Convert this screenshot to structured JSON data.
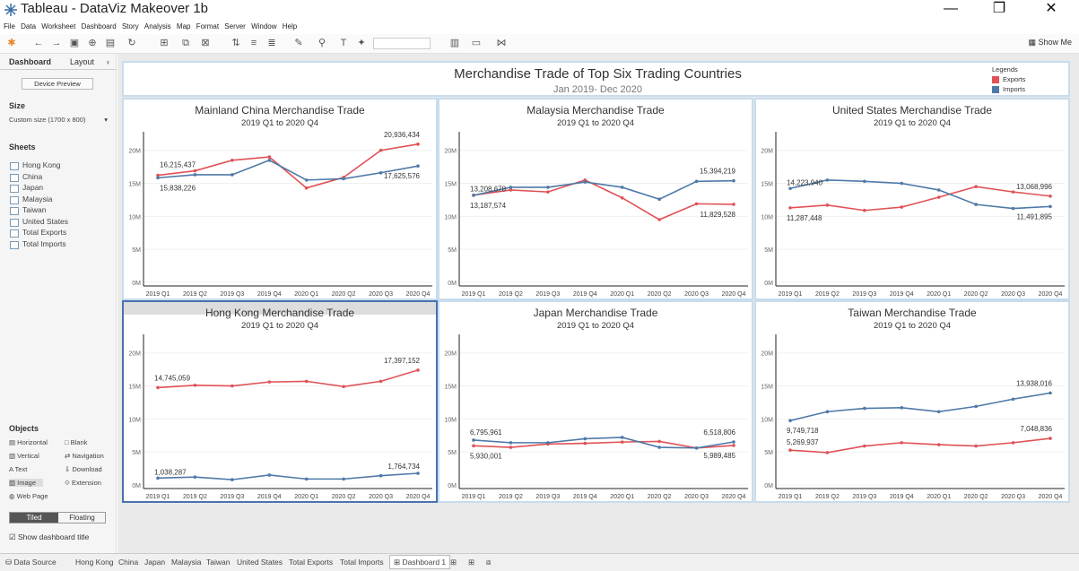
{
  "window": {
    "title": "Tableau - DataViz Makeover 1b"
  },
  "menu": [
    "File",
    "Data",
    "Worksheet",
    "Dashboard",
    "Story",
    "Analysis",
    "Map",
    "Format",
    "Server",
    "Window",
    "Help"
  ],
  "toolbar": {
    "show_me": "Show Me"
  },
  "left_pane": {
    "tab_dashboard": "Dashboard",
    "tab_layout": "Layout",
    "device_preview": "Device Preview",
    "size_label": "Size",
    "size_value": "Custom size (1700 x 800)",
    "sheets_label": "Sheets",
    "sheets": [
      "Hong Kong",
      "China",
      "Japan",
      "Malaysia",
      "Taiwan",
      "United States",
      "Total Exports",
      "Total Imports"
    ],
    "objects_label": "Objects",
    "objects": [
      "Horizontal",
      "Blank",
      "Vertical",
      "Navigation",
      "Text",
      "Download",
      "Image",
      "Extension",
      "Web Page"
    ],
    "tiled": "Tiled",
    "floating": "Floating",
    "show_title": "Show dashboard title"
  },
  "dashboard": {
    "title": "Merchandise Trade of Top Six Trading Countries",
    "subtitle": "Jan 2019- Dec 2020",
    "legend_title": "Legends",
    "legend_exports": "Exports",
    "legend_imports": "Imports",
    "color_exports": "#e05256",
    "color_imports": "#4e79a7"
  },
  "chart_data": [
    {
      "type": "line",
      "title": "Mainland China Merchandise Trade",
      "subtitle": "2019 Q1 to 2020 Q4",
      "categories": [
        "2019 Q1",
        "2019 Q2",
        "2019 Q3",
        "2019 Q4",
        "2020 Q1",
        "2020 Q2",
        "2020 Q3",
        "2020 Q4"
      ],
      "ylim": [
        0,
        22000000
      ],
      "ytick_labels": [
        "0M",
        "5M",
        "10M",
        "15M",
        "20M"
      ],
      "series": [
        {
          "name": "Exports",
          "values": [
            16215437,
            16900000,
            18500000,
            19000000,
            14300000,
            15900000,
            20000000,
            20936434
          ]
        },
        {
          "name": "Imports",
          "values": [
            15838226,
            16300000,
            16300000,
            18500000,
            15500000,
            15700000,
            16600000,
            17625576
          ]
        }
      ],
      "data_labels": [
        "16,215,437",
        "15,838,226",
        "20,936,434",
        "17,625,576"
      ]
    },
    {
      "type": "line",
      "title": "Malaysia Merchandise Trade",
      "subtitle": "2019 Q1 to 2020 Q4",
      "categories": [
        "2019 Q1",
        "2019 Q2",
        "2019 Q3",
        "2019 Q4",
        "2020 Q1",
        "2020 Q2",
        "2020 Q3",
        "2020 Q4"
      ],
      "ylim": [
        0,
        22000000
      ],
      "ytick_labels": [
        "0M",
        "5M",
        "10M",
        "15M",
        "20M"
      ],
      "series": [
        {
          "name": "Exports",
          "values": [
            13208678,
            14000000,
            13700000,
            15500000,
            12800000,
            9500000,
            11900000,
            11829528
          ]
        },
        {
          "name": "Imports",
          "values": [
            13187574,
            14400000,
            14400000,
            15200000,
            14400000,
            12600000,
            15300000,
            15394219
          ]
        }
      ],
      "data_labels": [
        "13,208,678",
        "13,187,574",
        "15,394,219",
        "11,829,528"
      ]
    },
    {
      "type": "line",
      "title": "United States Merchandise Trade",
      "subtitle": "2019 Q1 to 2020 Q4",
      "categories": [
        "2019 Q1",
        "2019 Q2",
        "2019 Q3",
        "2019 Q4",
        "2020 Q1",
        "2020 Q2",
        "2020 Q3",
        "2020 Q4"
      ],
      "ylim": [
        0,
        22000000
      ],
      "ytick_labels": [
        "0M",
        "5M",
        "10M",
        "15M",
        "20M"
      ],
      "series": [
        {
          "name": "Exports",
          "values": [
            11287448,
            11700000,
            10900000,
            11400000,
            12900000,
            14500000,
            13700000,
            13068996
          ]
        },
        {
          "name": "Imports",
          "values": [
            14223940,
            15500000,
            15300000,
            15000000,
            14000000,
            11800000,
            11200000,
            11491895
          ]
        }
      ],
      "data_labels": [
        "14,223,940",
        "11,287,448",
        "13,068,996",
        "11,491,895"
      ]
    },
    {
      "type": "line",
      "title": "Hong Kong Merchandise Trade",
      "subtitle": "2019 Q1 to 2020 Q4",
      "categories": [
        "2019 Q1",
        "2019 Q2",
        "2019 Q3",
        "2019 Q4",
        "2020 Q1",
        "2020 Q2",
        "2020 Q3",
        "2020 Q4"
      ],
      "ylim": [
        0,
        22000000
      ],
      "ytick_labels": [
        "0M",
        "5M",
        "10M",
        "15M",
        "20M"
      ],
      "series": [
        {
          "name": "Exports",
          "values": [
            14745059,
            15100000,
            15000000,
            15600000,
            15700000,
            14900000,
            15700000,
            17397152
          ]
        },
        {
          "name": "Imports",
          "values": [
            1038287,
            1200000,
            800000,
            1500000,
            900000,
            900000,
            1400000,
            1764734
          ]
        }
      ],
      "data_labels": [
        "14,745,059",
        "1,038,287",
        "17,397,152",
        "1,764,734"
      ]
    },
    {
      "type": "line",
      "title": "Japan Merchandise Trade",
      "subtitle": "2019 Q1 to 2020 Q4",
      "categories": [
        "2019 Q1",
        "2019 Q2",
        "2019 Q3",
        "2019 Q4",
        "2020 Q1",
        "2020 Q2",
        "2020 Q3",
        "2020 Q4"
      ],
      "ylim": [
        0,
        22000000
      ],
      "ytick_labels": [
        "0M",
        "5M",
        "10M",
        "15M",
        "20M"
      ],
      "series": [
        {
          "name": "Exports",
          "values": [
            5930001,
            5700000,
            6200000,
            6300000,
            6500000,
            6600000,
            5600000,
            5989485
          ]
        },
        {
          "name": "Imports",
          "values": [
            6795961,
            6400000,
            6400000,
            7000000,
            7200000,
            5700000,
            5600000,
            6518806
          ]
        }
      ],
      "data_labels": [
        "6,795,961",
        "5,930,001",
        "6,518,806",
        "5,989,485"
      ]
    },
    {
      "type": "line",
      "title": "Taiwan Merchandise Trade",
      "subtitle": "2019 Q1 to 2020 Q4",
      "categories": [
        "2019 Q1",
        "2019 Q2",
        "2019 Q3",
        "2019 Q4",
        "2020 Q1",
        "2020 Q2",
        "2020 Q3",
        "2020 Q4"
      ],
      "ylim": [
        0,
        22000000
      ],
      "ytick_labels": [
        "0M",
        "5M",
        "10M",
        "15M",
        "20M"
      ],
      "series": [
        {
          "name": "Exports",
          "values": [
            5269937,
            4900000,
            5900000,
            6400000,
            6100000,
            5900000,
            6400000,
            7048836
          ]
        },
        {
          "name": "Imports",
          "values": [
            9749718,
            11100000,
            11600000,
            11700000,
            11100000,
            11900000,
            13000000,
            13938016
          ]
        }
      ],
      "data_labels": [
        "9,749,718",
        "5,269,937",
        "13,938,016",
        "7,048,836"
      ]
    }
  ],
  "bottom_tabs": [
    "Data Source",
    "Hong Kong",
    "China",
    "Japan",
    "Malaysia",
    "Taiwan",
    "United States",
    "Total Exports",
    "Total Imports",
    "Dashboard 1"
  ]
}
